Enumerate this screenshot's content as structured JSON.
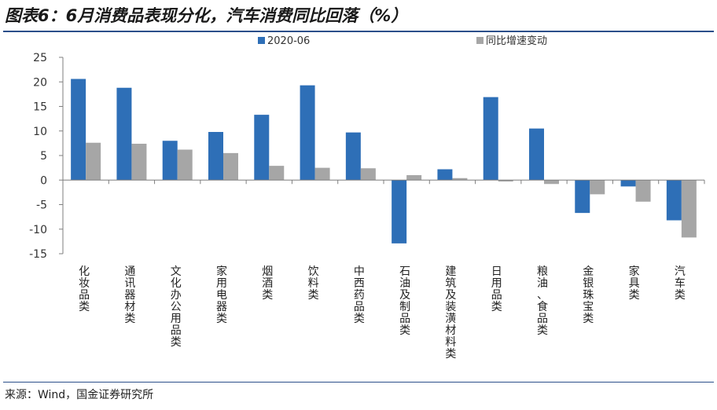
{
  "header": {
    "title": "图表6：6月消费品表现分化，汽车消费同比回落（%）"
  },
  "footer": {
    "source": "来源：Wind，国金证券研究所"
  },
  "colors": {
    "series_1": "#2e6fb7",
    "series_2": "#a6a6a6",
    "rule": "#2c4f8a"
  },
  "chart_data": {
    "type": "bar",
    "title": "",
    "xlabel": "",
    "ylabel": "",
    "ylim": [
      -15,
      25
    ],
    "yticks": [
      -15,
      -10,
      -5,
      0,
      5,
      10,
      15,
      20,
      25
    ],
    "grid": false,
    "legend_position": "top",
    "categories": [
      "化妆品类",
      "通讯器材类",
      "文化办公用品类",
      "家用电器类",
      "烟酒类",
      "饮料类",
      "中西药品类",
      "石油及制品类",
      "建筑及装潢材料类",
      "日用品类",
      "粮油、食品类",
      "金银珠宝类",
      "家具类",
      "汽车类"
    ],
    "series": [
      {
        "name": "2020-06",
        "color": "#2e6fb7",
        "values": [
          20.6,
          18.8,
          8.0,
          9.8,
          13.3,
          19.3,
          9.7,
          -12.9,
          2.2,
          16.9,
          10.5,
          -6.7,
          -1.3,
          -8.2
        ]
      },
      {
        "name": "同比增速变动",
        "color": "#a6a6a6",
        "values": [
          7.6,
          7.4,
          6.2,
          5.5,
          2.9,
          2.5,
          2.4,
          1.0,
          0.4,
          -0.3,
          -0.8,
          -2.9,
          -4.4,
          -11.7
        ]
      }
    ]
  }
}
